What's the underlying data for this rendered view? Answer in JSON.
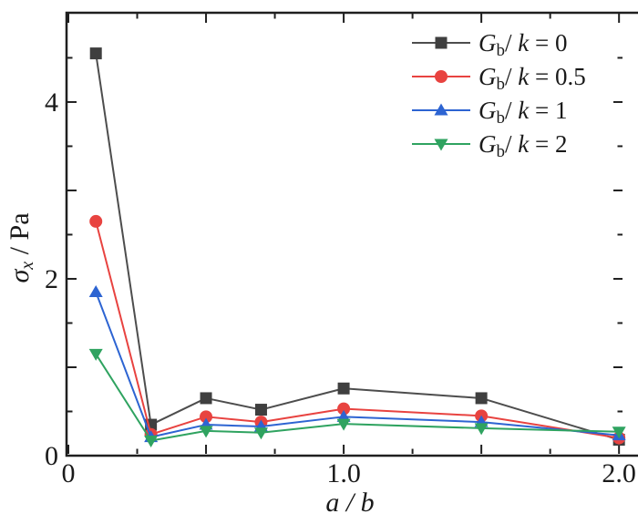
{
  "chart_data": {
    "type": "line",
    "title": "",
    "xlabel": "a / b",
    "ylabel": "σx / Pa",
    "xlabel_parts": {
      "var1": "a",
      "sep": " / ",
      "var2": "b"
    },
    "ylabel_parts": {
      "symbol": "σ",
      "subscript": "x",
      "unit": " / Pa"
    },
    "background": "#ffffff",
    "frame_color": "#1f1f1f",
    "x": [
      0.1,
      0.3,
      0.5,
      0.7,
      1.0,
      1.5,
      2.0
    ],
    "series": [
      {
        "id": "gbk-0",
        "label": "Gb/k = 0",
        "value": "0",
        "marker": "square",
        "color": "#3f3f3f",
        "line_color": "#4d4d4d",
        "values": [
          4.55,
          0.35,
          0.65,
          0.52,
          0.76,
          0.65,
          0.18
        ]
      },
      {
        "id": "gbk-0-5",
        "label": "Gb/k = 0.5",
        "value": "0.5",
        "marker": "circle",
        "color": "#e84340",
        "line_color": "#e84340",
        "values": [
          2.65,
          0.24,
          0.44,
          0.38,
          0.53,
          0.45,
          0.2
        ]
      },
      {
        "id": "gbk-1",
        "label": "Gb/k = 1",
        "value": "1",
        "marker": "triangle-up",
        "color": "#2d64d2",
        "line_color": "#2d64d2",
        "values": [
          1.85,
          0.21,
          0.35,
          0.33,
          0.44,
          0.38,
          0.23
        ]
      },
      {
        "id": "gbk-2",
        "label": "Gb/k = 2",
        "value": "2",
        "marker": "triangle-down",
        "color": "#2fa360",
        "line_color": "#2fa360",
        "values": [
          1.15,
          0.17,
          0.28,
          0.26,
          0.36,
          0.31,
          0.27
        ]
      }
    ],
    "x_axis": {
      "range": [
        0,
        2.016
      ],
      "major_ticks": [
        0,
        0.5,
        1.0,
        1.5,
        2.0
      ],
      "minor_ticks": [
        0.25,
        0.75,
        1.25,
        1.75
      ],
      "labels": [
        {
          "v": 0,
          "text": "0"
        },
        {
          "v": 1.0,
          "text": "1.0"
        },
        {
          "v": 2.0,
          "text": "2.0"
        }
      ]
    },
    "y_axis": {
      "range": [
        0,
        5.02
      ],
      "major_ticks": [
        0,
        1,
        2,
        3,
        4
      ],
      "minor_ticks": [
        0.5,
        1.5,
        2.5,
        3.5,
        4.5
      ],
      "labels": [
        {
          "v": 0,
          "text": "0"
        },
        {
          "v": 2,
          "text": "2"
        },
        {
          "v": 4,
          "text": "4"
        }
      ]
    },
    "legend": {
      "position": "top-right",
      "prefix_var": "G",
      "prefix_sub": "b",
      "divider": "/ ",
      "k_var": "k",
      "equals": " = "
    }
  }
}
